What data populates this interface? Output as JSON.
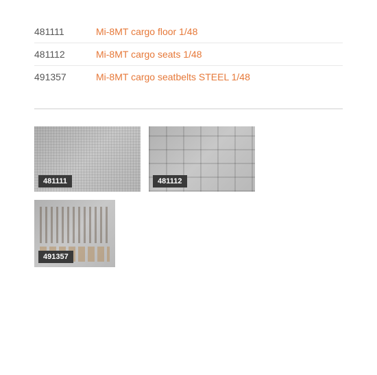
{
  "products": [
    {
      "code": "481111",
      "name": "Mi-8MT cargo floor 1/48"
    },
    {
      "code": "481112",
      "name": "Mi-8MT cargo seats 1/48"
    },
    {
      "code": "491357",
      "name": "Mi-8MT cargo seatbelts STEEL 1/48"
    }
  ],
  "thumbnails": [
    {
      "label": "481111",
      "pattern": "lines",
      "size": "normal"
    },
    {
      "label": "481112",
      "pattern": "grid",
      "size": "normal"
    },
    {
      "label": "491357",
      "pattern": "bars",
      "size": "small"
    }
  ],
  "colors": {
    "link_color": "#e67838",
    "code_color": "#555555",
    "label_bg": "#3a3a3a",
    "label_text": "#ffffff",
    "border": "#e8e8e8",
    "divider": "#d0d0d0",
    "thumb_bg": "#c0c0c0"
  },
  "typography": {
    "font_family": "Arial, sans-serif",
    "list_fontsize": 14,
    "label_fontsize": 11
  }
}
